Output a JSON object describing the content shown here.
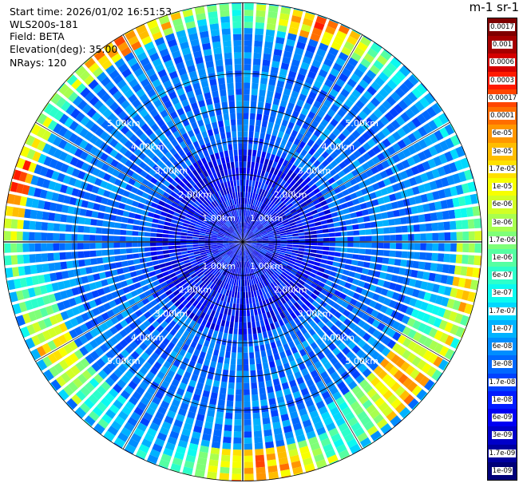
{
  "info": {
    "start_time": "Start time: 2026/01/02 16:51:53",
    "instrument": "WLS200s-181",
    "field": "Field: BETA",
    "elevation": "Elevation(deg): 35.00",
    "nrays": "NRays: 120"
  },
  "colorbar": {
    "title": "m-1 sr-1",
    "labels": [
      "0.0017",
      "0.001",
      "0.0006",
      "0.0003",
      "0.00017",
      "0.0001",
      "6e-05",
      "3e-05",
      "1.7e-05",
      "1e-05",
      "6e-06",
      "3e-06",
      "1.7e-06",
      "1e-06",
      "6e-07",
      "3e-07",
      "1.7e-07",
      "1e-07",
      "6e-08",
      "3e-08",
      "1.7e-08",
      "1e-08",
      "6e-09",
      "3e-09",
      "1.7e-09",
      "1e-09"
    ],
    "colors": [
      "#7f0000",
      "#a60000",
      "#d40000",
      "#ff1a00",
      "#ff4500",
      "#ff6e00",
      "#ff9600",
      "#ffbd00",
      "#ffe100",
      "#f7ff00",
      "#d2ff25",
      "#a8ff4f",
      "#7fff78",
      "#55ffa2",
      "#2cffcb",
      "#0bfaf0",
      "#00d8ff",
      "#00b2ff",
      "#008eff",
      "#0068ff",
      "#0042ff",
      "#001cff",
      "#0000f3",
      "#0000c9",
      "#00009f",
      "#000078"
    ]
  },
  "chart_data": {
    "type": "heatmap",
    "projection": "polar-ppi",
    "title": "",
    "field": "BETA",
    "units": "m-1 sr-1",
    "elevation_deg": 35.0,
    "n_rays": 120,
    "range_rings_km": [
      1,
      2,
      3,
      4,
      5
    ],
    "range_ring_labels": [
      "1.00km",
      "2.00km",
      "3.00km",
      "4.00km",
      "5.00km"
    ],
    "max_range_km": 7.1,
    "color_scale": "log",
    "color_range": [
      1e-09,
      0.0017
    ],
    "high_backscatter_sectors": [
      {
        "azimuth_deg": 20,
        "range_km": [
          6.2,
          7.0
        ],
        "value": 3e-05
      },
      {
        "azimuth_deg": 100,
        "range_km": [
          6.3,
          7.1
        ],
        "value": 1e-05
      },
      {
        "azimuth_deg": 130,
        "range_km": [
          5.3,
          6.8
        ],
        "value": 3e-05
      },
      {
        "azimuth_deg": 175,
        "range_km": [
          6.0,
          7.1
        ],
        "value": 6e-05
      },
      {
        "azimuth_deg": 240,
        "range_km": [
          5.8,
          6.8
        ],
        "value": 1e-05
      },
      {
        "azimuth_deg": 285,
        "range_km": [
          6.4,
          7.1
        ],
        "value": 6e-05
      },
      {
        "azimuth_deg": 330,
        "range_km": [
          6.5,
          7.1
        ],
        "value": 6e-05
      }
    ]
  }
}
